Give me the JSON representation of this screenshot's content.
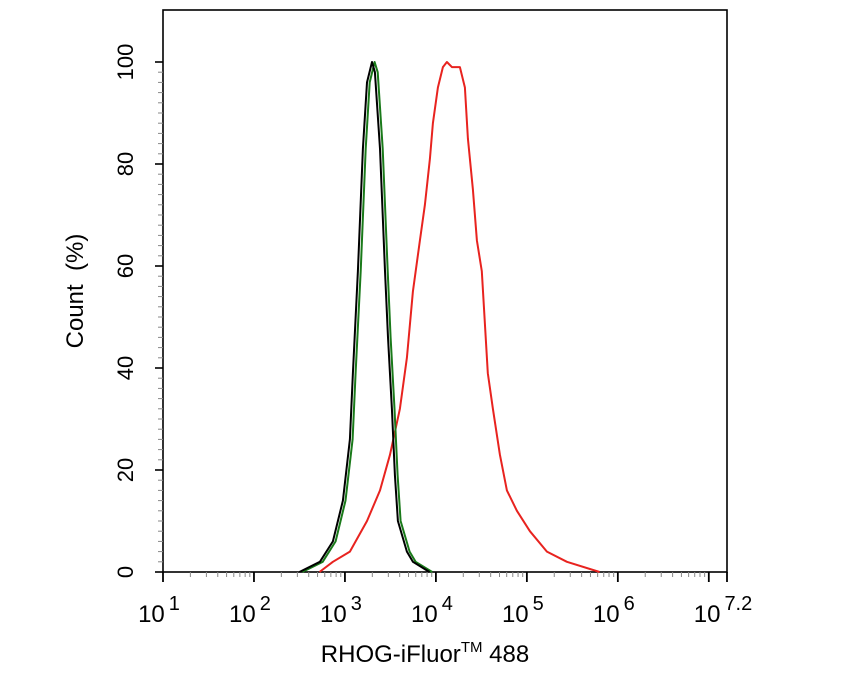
{
  "chart_data": {
    "type": "line",
    "title": "",
    "xlabel": "RHOG-iFluor",
    "xlabel_superscript": "TM",
    "xlabel_suffix": " 488",
    "ylabel": "Count  (%)",
    "x_scale": "log",
    "xlim": [
      10,
      15848932
    ],
    "ylim": [
      0,
      100
    ],
    "x_tick_labels": [
      {
        "base": "10",
        "exp": "1"
      },
      {
        "base": "10",
        "exp": "2"
      },
      {
        "base": "10",
        "exp": "3"
      },
      {
        "base": "10",
        "exp": "4"
      },
      {
        "base": "10",
        "exp": "5"
      },
      {
        "base": "10",
        "exp": "6"
      },
      {
        "base": "10",
        "exp": "7.2"
      }
    ],
    "y_ticks": [
      0,
      20,
      40,
      60,
      80,
      100
    ],
    "grid": false,
    "series": [
      {
        "color": "#e8231f",
        "x": [
          525,
          738,
          1135,
          1746,
          2427,
          3126,
          4018,
          4797,
          5585,
          6668,
          7568,
          8590,
          9268,
          10520,
          11940,
          13210,
          15000,
          17020,
          18370,
          20840,
          22490,
          25530,
          28250,
          31990,
          34510,
          37240,
          42270,
          50470,
          60260,
          77620,
          107900,
          166000,
          275400,
          631000
        ],
        "y": [
          0,
          2,
          4,
          10,
          16,
          23,
          32,
          42,
          55,
          65,
          72,
          81,
          88,
          95,
          99,
          100,
          99,
          99,
          99,
          95,
          85,
          75,
          65,
          59,
          49,
          39,
          32,
          23,
          16,
          12,
          8,
          4,
          2,
          0
        ]
      },
      {
        "color": "#1a7a1a",
        "x": [
          340,
          570,
          790,
          1015,
          1215,
          1310,
          1490,
          1690,
          1870,
          2120,
          2290,
          2600,
          2950,
          3180,
          3510,
          3790,
          4090,
          5140,
          5980,
          9100
        ],
        "y": [
          0,
          2,
          6,
          14,
          26,
          39,
          59,
          83,
          96,
          100,
          98,
          83,
          59,
          46,
          32,
          19,
          10,
          4,
          2,
          0
        ]
      },
      {
        "color": "#000000",
        "x": [
          316,
          531,
          738,
          950,
          1135,
          1224,
          1390,
          1577,
          1746,
          1982,
          2136,
          2427,
          2754,
          2972,
          3284,
          3543,
          3820,
          4800,
          5585,
          8500
        ],
        "y": [
          0,
          2,
          6,
          14,
          26,
          39,
          59,
          83,
          96,
          100,
          98,
          83,
          59,
          46,
          32,
          19,
          10,
          4,
          2,
          0
        ]
      }
    ]
  }
}
